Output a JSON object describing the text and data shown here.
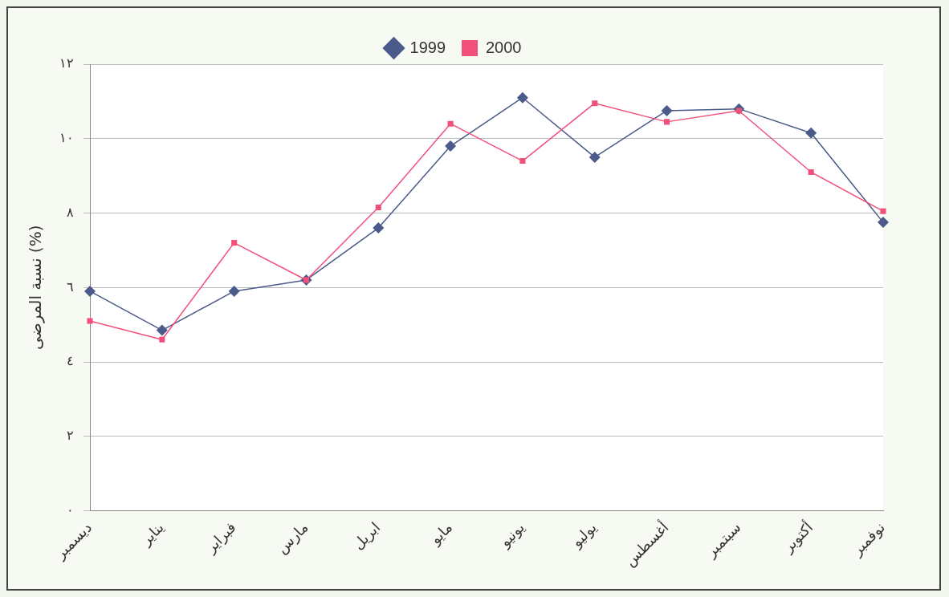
{
  "chart_data": {
    "type": "line",
    "ylabel": "نسبة المرضى (%)",
    "categories": [
      "ديسمبر",
      "يناير",
      "فبراير",
      "مارس",
      "ابريل",
      "مايو",
      "يونيو",
      "يوليو",
      "أغسطس",
      "سبتمبر",
      "أكتوبر",
      "نوفمبر"
    ],
    "series": [
      {
        "name": "1999",
        "color": "#4a5a8a",
        "marker": "diamond",
        "values": [
          5.9,
          4.85,
          5.9,
          6.2,
          7.6,
          9.8,
          11.1,
          9.5,
          10.75,
          10.8,
          10.15,
          7.75
        ]
      },
      {
        "name": "2000",
        "color": "#f0507a",
        "marker": "square",
        "values": [
          5.1,
          4.6,
          7.2,
          6.2,
          8.15,
          10.4,
          9.4,
          10.95,
          10.45,
          10.75,
          9.1,
          8.05
        ]
      }
    ],
    "ylim": [
      0,
      12
    ],
    "yticks": [
      {
        "value": 0,
        "label": "٠"
      },
      {
        "value": 2,
        "label": "٢"
      },
      {
        "value": 4,
        "label": "٤"
      },
      {
        "value": 6,
        "label": "٦"
      },
      {
        "value": 8,
        "label": "٨"
      },
      {
        "value": 10,
        "label": "١٠"
      },
      {
        "value": 12,
        "label": "١٢"
      }
    ],
    "grid": "y",
    "legend": "top",
    "line_style": "solid"
  }
}
